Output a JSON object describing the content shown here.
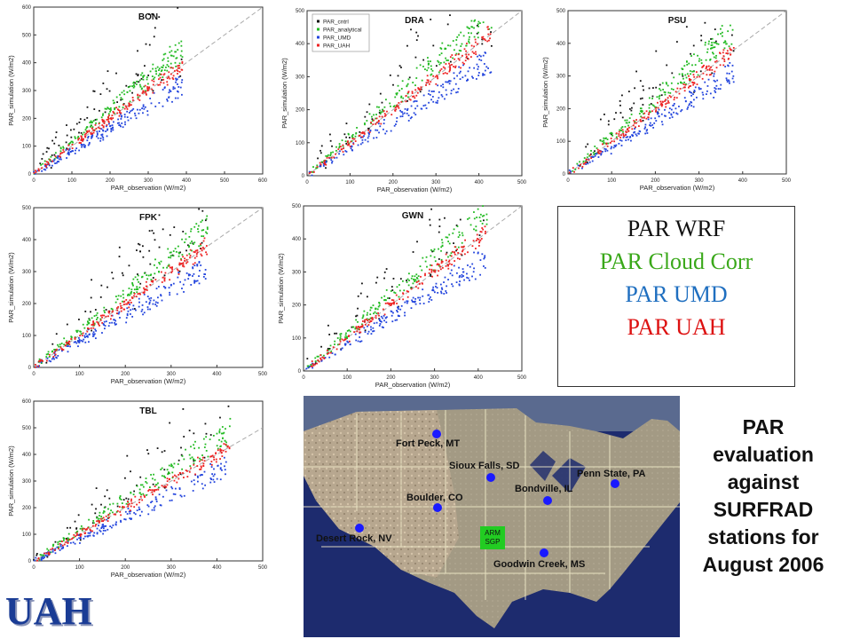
{
  "chart_data": [
    {
      "type": "scatter",
      "title": "BON",
      "xlabel": "PAR_observation (W/m2)",
      "ylabel": "PAR_simulation (W/m2)",
      "xlim": [
        0,
        600
      ],
      "ylim": [
        0,
        600
      ],
      "xticks": [
        "0",
        "100",
        "200",
        "300",
        "400",
        "500",
        "600"
      ],
      "yticks": [
        "0",
        "100",
        "200",
        "300",
        "400",
        "500",
        "600"
      ],
      "legend": false,
      "seed": 11,
      "xmax": 390
    },
    {
      "type": "scatter",
      "title": "DRA",
      "xlabel": "PAR_observation (W/m2)",
      "ylabel": "PAR_simulation (W/m2)",
      "xlim": [
        0,
        500
      ],
      "ylim": [
        0,
        500
      ],
      "xticks": [
        "0",
        "100",
        "200",
        "300",
        "400",
        "500"
      ],
      "yticks": [
        "0",
        "100",
        "200",
        "300",
        "400",
        "500"
      ],
      "legend": true,
      "seed": 23,
      "xmax": 430
    },
    {
      "type": "scatter",
      "title": "PSU",
      "xlabel": "PAR_observation (W/m2)",
      "ylabel": "PAR_simulation (W/m2)",
      "xlim": [
        0,
        500
      ],
      "ylim": [
        0,
        500
      ],
      "xticks": [
        "0",
        "100",
        "200",
        "300",
        "400",
        "500"
      ],
      "yticks": [
        "0",
        "100",
        "200",
        "300",
        "400",
        "500"
      ],
      "legend": false,
      "seed": 37,
      "xmax": 380
    },
    {
      "type": "scatter",
      "title": "FPK",
      "xlabel": "PAR_observation (W/m2)",
      "ylabel": "PAR_simulation (W/m2)",
      "xlim": [
        0,
        500
      ],
      "ylim": [
        0,
        500
      ],
      "xticks": [
        "0",
        "100",
        "200",
        "300",
        "400",
        "500"
      ],
      "yticks": [
        "0",
        "100",
        "200",
        "300",
        "400",
        "500"
      ],
      "legend": false,
      "seed": 41,
      "xmax": 380
    },
    {
      "type": "scatter",
      "title": "GWN",
      "xlabel": "PAR_observation (W/m2)",
      "ylabel": "PAR_simulation (W/m2)",
      "xlim": [
        0,
        500
      ],
      "ylim": [
        0,
        500
      ],
      "xticks": [
        "0",
        "100",
        "200",
        "300",
        "400",
        "500"
      ],
      "yticks": [
        "0",
        "100",
        "200",
        "300",
        "400",
        "500"
      ],
      "legend": false,
      "seed": 53,
      "xmax": 420
    },
    {
      "type": "scatter",
      "title": "TBL",
      "xlabel": "PAR_observation (W/m2)",
      "ylabel": "PAR_simulation (W/m2)",
      "xlim": [
        0,
        500
      ],
      "ylim": [
        0,
        600
      ],
      "xticks": [
        "0",
        "100",
        "200",
        "300",
        "400",
        "500"
      ],
      "yticks": [
        "0",
        "100",
        "200",
        "300",
        "400",
        "500",
        "600"
      ],
      "legend": false,
      "seed": 67,
      "xmax": 430
    }
  ],
  "series": [
    {
      "name": "PAR_cntrl",
      "color": "#111111"
    },
    {
      "name": "PAR_analytical",
      "color": "#22bb22"
    },
    {
      "name": "PAR_UMD",
      "color": "#2244dd"
    },
    {
      "name": "PAR_UAH",
      "color": "#ee2222"
    }
  ],
  "legend_box": {
    "line1": "PAR WRF",
    "line1_color": "#111111",
    "line2": "PAR Cloud Corr",
    "line2_color": "#3aa81a",
    "line3": "PAR UMD",
    "line3_color": "#1f6fc0",
    "line4": "PAR UAH",
    "line4_color": "#dd1111"
  },
  "side_title": {
    "l1": "PAR",
    "l2": "evaluation",
    "l3": "against",
    "l4": "SURFRAD",
    "l5": "stations for",
    "l6": "August 2006"
  },
  "map": {
    "stations": [
      {
        "name": "Fort Peck, MT"
      },
      {
        "name": "Sioux Falls, SD"
      },
      {
        "name": "Penn State, PA"
      },
      {
        "name": "Bondville, IL"
      },
      {
        "name": "Boulder, CO"
      },
      {
        "name": "Desert Rock, NV"
      },
      {
        "name": "Goodwin Creek, MS"
      }
    ],
    "arm_l1": "ARM",
    "arm_l2": "SGP"
  },
  "logo": "UAH"
}
